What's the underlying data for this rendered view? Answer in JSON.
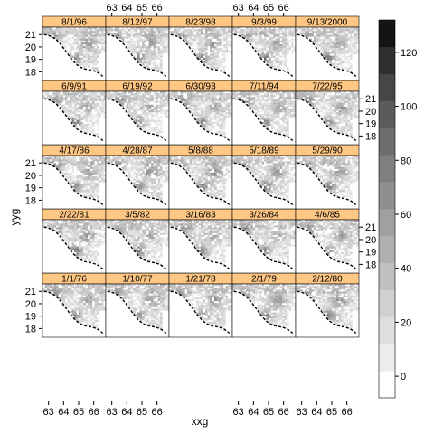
{
  "chart_data": {
    "type": "heatmap",
    "layout": {
      "columns": 5,
      "rows": 5,
      "order": "bottom-left first, left to right, then upward"
    },
    "panels": [
      "1/1/76",
      "1/10/77",
      "1/21/78",
      "2/1/79",
      "2/12/80",
      "2/22/81",
      "3/5/82",
      "3/16/83",
      "3/26/84",
      "4/6/85",
      "4/17/86",
      "4/28/87",
      "5/8/88",
      "5/18/89",
      "5/29/90",
      "6/9/91",
      "6/19/92",
      "6/30/93",
      "7/11/94",
      "7/22/95",
      "8/1/96",
      "8/12/97",
      "8/23/98",
      "9/3/99",
      "9/13/2000"
    ],
    "xlabel": "xxg",
    "ylabel": "yyg",
    "xlim": [
      62.6,
      66.8
    ],
    "ylim": [
      17.3,
      21.6
    ],
    "x_ticks": [
      63,
      64,
      65,
      66
    ],
    "y_ticks": [
      18,
      19,
      20,
      21
    ],
    "colorkey": {
      "ticks": [
        0,
        20,
        40,
        60,
        80,
        100,
        120
      ],
      "range": [
        -8,
        132
      ],
      "levels": 14,
      "colors": [
        "#ffffff",
        "#ececec",
        "#dedede",
        "#d0d0d0",
        "#c0c0c0",
        "#b0b0b0",
        "#a0a0a0",
        "#8f8f8f",
        "#7f7f7f",
        "#6d6d6d",
        "#5b5b5b",
        "#464646",
        "#2f2f2f",
        "#141414"
      ]
    },
    "strip_color": "#ffc784"
  }
}
